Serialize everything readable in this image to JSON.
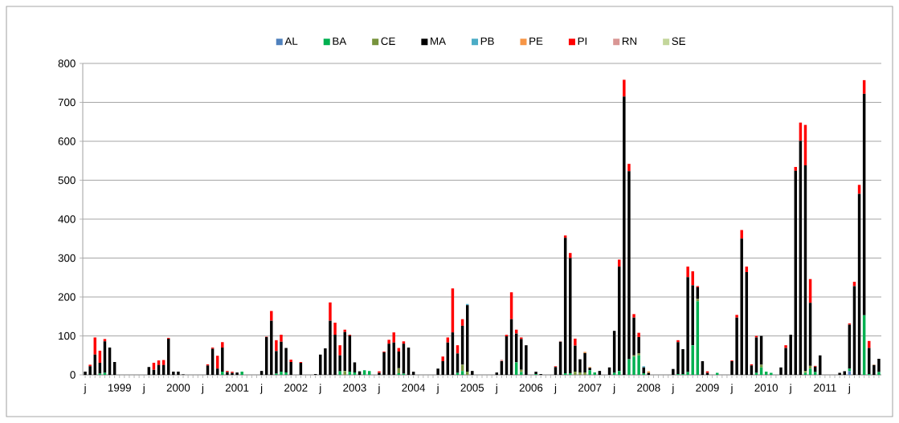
{
  "chart_data": {
    "type": "bar",
    "stacked": true,
    "legend": "top",
    "grid": "y",
    "ylim": [
      0,
      800
    ],
    "yticks": [
      0,
      100,
      200,
      300,
      400,
      500,
      600,
      700,
      800
    ],
    "categories": [
      "j",
      null,
      null,
      null,
      null,
      null,
      null,
      "1999",
      null,
      null,
      null,
      null,
      "j",
      null,
      null,
      null,
      null,
      null,
      null,
      "2000",
      null,
      null,
      null,
      null,
      "j",
      null,
      null,
      null,
      null,
      null,
      null,
      "2001",
      null,
      null,
      null,
      null,
      "j",
      null,
      null,
      null,
      null,
      null,
      null,
      "2002",
      null,
      null,
      null,
      null,
      "j",
      null,
      null,
      null,
      null,
      null,
      null,
      "2003",
      null,
      null,
      null,
      null,
      "j",
      null,
      null,
      null,
      null,
      null,
      null,
      "2004",
      null,
      null,
      null,
      null,
      "j",
      null,
      null,
      null,
      null,
      null,
      null,
      "2005",
      null,
      null,
      null,
      null,
      "j",
      null,
      null,
      null,
      null,
      null,
      null,
      "2006",
      null,
      null,
      null,
      null,
      "j",
      null,
      null,
      null,
      null,
      null,
      null,
      "2007",
      null,
      null,
      null,
      null,
      "j",
      null,
      null,
      null,
      null,
      null,
      null,
      "2008",
      null,
      null,
      null,
      null,
      "j",
      null,
      null,
      null,
      null,
      null,
      null,
      "2009",
      null,
      null,
      null,
      null,
      "j",
      null,
      null,
      null,
      null,
      null,
      null,
      "2010",
      null,
      null,
      null,
      null,
      "j",
      null,
      null,
      null,
      null,
      null,
      null,
      "2011",
      null,
      null,
      null,
      null,
      "j",
      null,
      null,
      null,
      null,
      null,
      null
    ],
    "series": [
      {
        "name": "AL",
        "color": "#4f81bd",
        "values": [
          0,
          0,
          0,
          0,
          0,
          0,
          0,
          0,
          0,
          0,
          0,
          0,
          0,
          0,
          0,
          0,
          0,
          0,
          0,
          0,
          0,
          0,
          0,
          0,
          0,
          0,
          0,
          0,
          0,
          0,
          0,
          0,
          0,
          0,
          0,
          0,
          0,
          0,
          0,
          0,
          0,
          0,
          0,
          0,
          0,
          0,
          0,
          0,
          0,
          0,
          0,
          0,
          0,
          0,
          0,
          0,
          0,
          0,
          0,
          0,
          0,
          0,
          0,
          0,
          0,
          0,
          0,
          0,
          0,
          0,
          0,
          0,
          0,
          0,
          0,
          0,
          0,
          0,
          0,
          0,
          0,
          0,
          0,
          0,
          0,
          0,
          0,
          0,
          0,
          0,
          0,
          0,
          0,
          0,
          0,
          0,
          0,
          0,
          0,
          0,
          0,
          0,
          0,
          0,
          0,
          0,
          0,
          0,
          0,
          0,
          0,
          0,
          0,
          0,
          0,
          0,
          0,
          0,
          0,
          0,
          0,
          0,
          0,
          0,
          0,
          0,
          0,
          0,
          0,
          0,
          0,
          0,
          0,
          0,
          0,
          0,
          0,
          0,
          0,
          0,
          0,
          0,
          0,
          0,
          0,
          0,
          0,
          0,
          0,
          0,
          0,
          0,
          0,
          0,
          0,
          0,
          9,
          0,
          0,
          0,
          0,
          0,
          0
        ]
      },
      {
        "name": "BA",
        "color": "#00b050",
        "values": [
          0,
          0,
          0,
          3,
          5,
          0,
          0,
          0,
          0,
          0,
          0,
          0,
          0,
          0,
          0,
          0,
          0,
          0,
          0,
          0,
          0,
          0,
          0,
          0,
          0,
          0,
          0,
          0,
          8,
          0,
          0,
          0,
          8,
          0,
          0,
          0,
          0,
          0,
          0,
          3,
          8,
          6,
          0,
          0,
          0,
          0,
          0,
          0,
          0,
          0,
          0,
          0,
          9,
          0,
          8,
          6,
          0,
          12,
          10,
          0,
          0,
          0,
          0,
          0,
          4,
          3,
          0,
          0,
          0,
          0,
          0,
          0,
          0,
          0,
          0,
          0,
          5,
          10,
          0,
          0,
          0,
          0,
          0,
          0,
          0,
          0,
          0,
          0,
          32,
          7,
          0,
          0,
          2,
          0,
          0,
          0,
          0,
          0,
          4,
          4,
          0,
          0,
          0,
          12,
          6,
          0,
          0,
          0,
          5,
          10,
          0,
          40,
          47,
          50,
          4,
          0,
          0,
          0,
          0,
          0,
          0,
          2,
          2,
          7,
          76,
          189,
          0,
          0,
          0,
          5,
          0,
          0,
          0,
          0,
          0,
          0,
          0,
          5,
          19,
          8,
          5,
          0,
          0,
          0,
          0,
          0,
          0,
          5,
          16,
          7,
          0,
          0,
          0,
          0,
          0,
          0,
          7,
          0,
          0,
          153,
          2,
          0,
          7
        ]
      },
      {
        "name": "CE",
        "color": "#77933c",
        "values": [
          0,
          0,
          0,
          0,
          0,
          0,
          0,
          0,
          0,
          0,
          0,
          0,
          0,
          0,
          0,
          0,
          0,
          0,
          0,
          0,
          0,
          0,
          0,
          0,
          0,
          0,
          0,
          0,
          0,
          0,
          0,
          0,
          0,
          0,
          0,
          0,
          0,
          0,
          0,
          0,
          0,
          0,
          0,
          0,
          0,
          0,
          0,
          0,
          0,
          0,
          0,
          0,
          0,
          10,
          0,
          0,
          0,
          0,
          0,
          0,
          0,
          0,
          0,
          0,
          13,
          0,
          0,
          0,
          0,
          0,
          0,
          0,
          0,
          0,
          0,
          0,
          0,
          16,
          8,
          0,
          0,
          0,
          0,
          0,
          0,
          0,
          0,
          0,
          0,
          6,
          0,
          0,
          0,
          0,
          0,
          0,
          0,
          0,
          0,
          0,
          8,
          6,
          6,
          0,
          0,
          0,
          0,
          0,
          0,
          0,
          0,
          0,
          3,
          5,
          0,
          0,
          0,
          0,
          0,
          0,
          0,
          0,
          0,
          0,
          0,
          6,
          0,
          0,
          0,
          0,
          0,
          0,
          0,
          0,
          0,
          0,
          0,
          0,
          7,
          0,
          0,
          0,
          0,
          0,
          0,
          0,
          0,
          5,
          7,
          0,
          0,
          0,
          0,
          0,
          0,
          0,
          0,
          0,
          0,
          0,
          0,
          0,
          0
        ]
      },
      {
        "name": "MA",
        "color": "#000000",
        "values": [
          8,
          22,
          52,
          28,
          81,
          70,
          33,
          0,
          0,
          0,
          0,
          0,
          0,
          20,
          13,
          25,
          25,
          93,
          8,
          8,
          1,
          0,
          0,
          0,
          0,
          24,
          67,
          16,
          62,
          7,
          5,
          6,
          0,
          0,
          0,
          0,
          10,
          97,
          139,
          58,
          77,
          63,
          33,
          0,
          31,
          0,
          0,
          2,
          52,
          68,
          139,
          103,
          41,
          100,
          93,
          26,
          9,
          0,
          0,
          0,
          5,
          58,
          80,
          83,
          43,
          77,
          70,
          8,
          0,
          0,
          0,
          0,
          16,
          35,
          83,
          109,
          50,
          100,
          171,
          10,
          0,
          0,
          0,
          0,
          6,
          35,
          99,
          143,
          74,
          79,
          76,
          0,
          6,
          2,
          0,
          0,
          20,
          85,
          348,
          296,
          67,
          34,
          50,
          6,
          0,
          10,
          0,
          19,
          108,
          268,
          715,
          483,
          97,
          42,
          15,
          5,
          0,
          0,
          0,
          0,
          15,
          82,
          64,
          244,
          154,
          30,
          35,
          5,
          0,
          0,
          0,
          0,
          35,
          147,
          350,
          264,
          24,
          91,
          74,
          0,
          0,
          0,
          19,
          69,
          103,
          524,
          601,
          528,
          162,
          14,
          50,
          0,
          0,
          0,
          5,
          9,
          113,
          228,
          465,
          569,
          67,
          25,
          34
        ]
      },
      {
        "name": "PB",
        "color": "#4bacc6",
        "values": [
          0,
          0,
          0,
          0,
          0,
          0,
          0,
          0,
          0,
          0,
          0,
          0,
          0,
          0,
          0,
          0,
          0,
          0,
          0,
          0,
          0,
          0,
          0,
          0,
          0,
          0,
          0,
          0,
          0,
          0,
          0,
          0,
          0,
          0,
          0,
          0,
          0,
          0,
          0,
          0,
          0,
          0,
          0,
          0,
          0,
          0,
          0,
          0,
          0,
          0,
          0,
          0,
          0,
          0,
          0,
          0,
          0,
          0,
          0,
          0,
          0,
          0,
          0,
          0,
          0,
          0,
          0,
          0,
          0,
          0,
          0,
          0,
          0,
          0,
          0,
          0,
          0,
          0,
          3,
          0,
          0,
          0,
          0,
          0,
          0,
          0,
          0,
          0,
          0,
          0,
          0,
          0,
          0,
          0,
          0,
          0,
          0,
          0,
          0,
          0,
          0,
          0,
          0,
          0,
          0,
          0,
          0,
          0,
          0,
          0,
          0,
          0,
          0,
          0,
          3,
          0,
          0,
          0,
          0,
          0,
          0,
          0,
          0,
          0,
          0,
          0,
          0,
          0,
          0,
          0,
          0,
          0,
          0,
          0,
          0,
          0,
          0,
          0,
          0,
          0,
          0,
          0,
          0,
          0,
          0,
          0,
          0,
          0,
          0,
          0,
          0,
          0,
          0,
          0,
          0,
          0,
          0,
          0,
          0,
          0,
          0,
          0,
          0
        ]
      },
      {
        "name": "PE",
        "color": "#f79646",
        "values": [
          0,
          0,
          0,
          0,
          0,
          0,
          0,
          0,
          0,
          0,
          0,
          0,
          0,
          0,
          0,
          0,
          0,
          0,
          0,
          0,
          0,
          0,
          0,
          0,
          0,
          0,
          0,
          0,
          0,
          0,
          0,
          0,
          0,
          0,
          0,
          0,
          0,
          0,
          0,
          0,
          0,
          0,
          0,
          0,
          0,
          0,
          0,
          0,
          0,
          0,
          0,
          0,
          0,
          0,
          0,
          0,
          0,
          0,
          0,
          0,
          0,
          0,
          0,
          0,
          0,
          0,
          0,
          0,
          0,
          0,
          0,
          0,
          0,
          0,
          0,
          0,
          0,
          0,
          0,
          0,
          0,
          0,
          0,
          0,
          0,
          0,
          0,
          0,
          0,
          0,
          0,
          0,
          0,
          0,
          0,
          0,
          0,
          0,
          0,
          0,
          0,
          0,
          3,
          2,
          0,
          0,
          0,
          0,
          0,
          0,
          0,
          0,
          0,
          0,
          0,
          4,
          0,
          0,
          0,
          0,
          0,
          0,
          0,
          0,
          0,
          0,
          0,
          0,
          0,
          0,
          0,
          0,
          0,
          0,
          0,
          0,
          0,
          0,
          0,
          0,
          0,
          0,
          0,
          0,
          0,
          0,
          0,
          0,
          0,
          0,
          0,
          0,
          0,
          0,
          0,
          0,
          0,
          0,
          0,
          0,
          0,
          1,
          0
        ]
      },
      {
        "name": "PI",
        "color": "#ff0000",
        "values": [
          0,
          4,
          44,
          31,
          6,
          0,
          0,
          0,
          0,
          0,
          0,
          0,
          0,
          0,
          18,
          12,
          13,
          2,
          0,
          0,
          0,
          0,
          0,
          0,
          0,
          3,
          3,
          33,
          14,
          3,
          3,
          0,
          0,
          0,
          0,
          0,
          0,
          1,
          25,
          28,
          18,
          0,
          6,
          0,
          2,
          0,
          0,
          0,
          0,
          null,
          47,
          31,
          26,
          6,
          2,
          0,
          0,
          0,
          0,
          0,
          4,
          2,
          10,
          26,
          9,
          6,
          null,
          0,
          0,
          0,
          0,
          0,
          0,
          12,
          13,
          113,
          21,
          17,
          0,
          0,
          0,
          0,
          0,
          0,
          0,
          0,
          4,
          69,
          10,
          4,
          0,
          0,
          0,
          0,
          0,
          0,
          2,
          0,
          6,
          13,
          18,
          0,
          0,
          0,
          0,
          0,
          0,
          0,
          0,
          18,
          43,
          19,
          9,
          11,
          0,
          0,
          0,
          0,
          0,
          0,
          0,
          5,
          0,
          27,
          36,
          3,
          0,
          4,
          0,
          0,
          0,
          0,
          2,
          7,
          22,
          14,
          3,
          4,
          0,
          0,
          0,
          0,
          0,
          7,
          null,
          10,
          47,
          104,
          61,
          2,
          0,
          0,
          0,
          0,
          0,
          0,
          3,
          11,
          23,
          35,
          18,
          0,
          0
        ]
      },
      {
        "name": "RN",
        "color": "#d99694",
        "values": [
          0,
          0,
          0,
          0,
          0,
          0,
          0,
          0,
          0,
          0,
          0,
          0,
          0,
          0,
          0,
          0,
          0,
          0,
          0,
          0,
          0,
          0,
          0,
          0,
          0,
          0,
          0,
          0,
          0,
          0,
          0,
          0,
          0,
          0,
          0,
          0,
          0,
          0,
          0,
          0,
          0,
          0,
          0,
          0,
          0,
          0,
          0,
          0,
          0,
          0,
          0,
          0,
          0,
          0,
          0,
          0,
          0,
          0,
          0,
          0,
          0,
          0,
          0,
          0,
          0,
          0,
          0,
          0,
          0,
          0,
          0,
          0,
          0,
          0,
          0,
          0,
          0,
          0,
          0,
          0,
          0,
          0,
          0,
          0,
          0,
          4,
          0,
          0,
          0,
          0,
          0,
          0,
          0,
          0,
          0,
          0,
          0,
          2,
          0,
          0,
          0,
          0,
          0,
          0,
          0,
          0,
          0,
          0,
          0,
          0,
          0,
          0,
          0,
          0,
          0,
          0,
          0,
          0,
          0,
          0,
          0,
          0,
          0,
          0,
          0,
          0,
          0,
          0,
          0,
          0,
          0,
          0,
          0,
          0,
          0,
          0,
          0,
          0,
          0,
          0,
          0,
          0,
          0,
          0,
          0,
          0,
          0,
          0,
          0,
          0,
          0,
          0,
          0,
          0,
          0,
          0,
          0,
          0,
          0,
          0,
          0,
          0,
          0
        ]
      },
      {
        "name": "SE",
        "color": "#c3d69b",
        "values": [
          0,
          0,
          0,
          0,
          0,
          0,
          0,
          0,
          0,
          0,
          0,
          0,
          0,
          0,
          0,
          0,
          0,
          0,
          0,
          0,
          0,
          0,
          0,
          0,
          0,
          0,
          0,
          0,
          0,
          0,
          0,
          0,
          0,
          0,
          0,
          0,
          0,
          0,
          0,
          0,
          0,
          0,
          0,
          0,
          0,
          0,
          0,
          0,
          0,
          0,
          0,
          0,
          0,
          0,
          0,
          0,
          0,
          0,
          0,
          0,
          0,
          0,
          0,
          0,
          0,
          0,
          0,
          0,
          0,
          0,
          0,
          0,
          0,
          0,
          0,
          0,
          0,
          0,
          0,
          0,
          0,
          0,
          0,
          0,
          0,
          0,
          0,
          0,
          0,
          0,
          0,
          0,
          0,
          0,
          0,
          0,
          0,
          0,
          0,
          0,
          0,
          0,
          0,
          0,
          0,
          0,
          0,
          0,
          0,
          0,
          0,
          0,
          0,
          0,
          0,
          0,
          0,
          0,
          0,
          0,
          0,
          0,
          0,
          0,
          0,
          0,
          0,
          0,
          0,
          0,
          0,
          0,
          0,
          0,
          0,
          0,
          0,
          0,
          0,
          0,
          0,
          0,
          0,
          0,
          0,
          0,
          0,
          0,
          0,
          0,
          0,
          0,
          0,
          0,
          0,
          0,
          0,
          0,
          0,
          0,
          0,
          0,
          0
        ]
      }
    ]
  }
}
